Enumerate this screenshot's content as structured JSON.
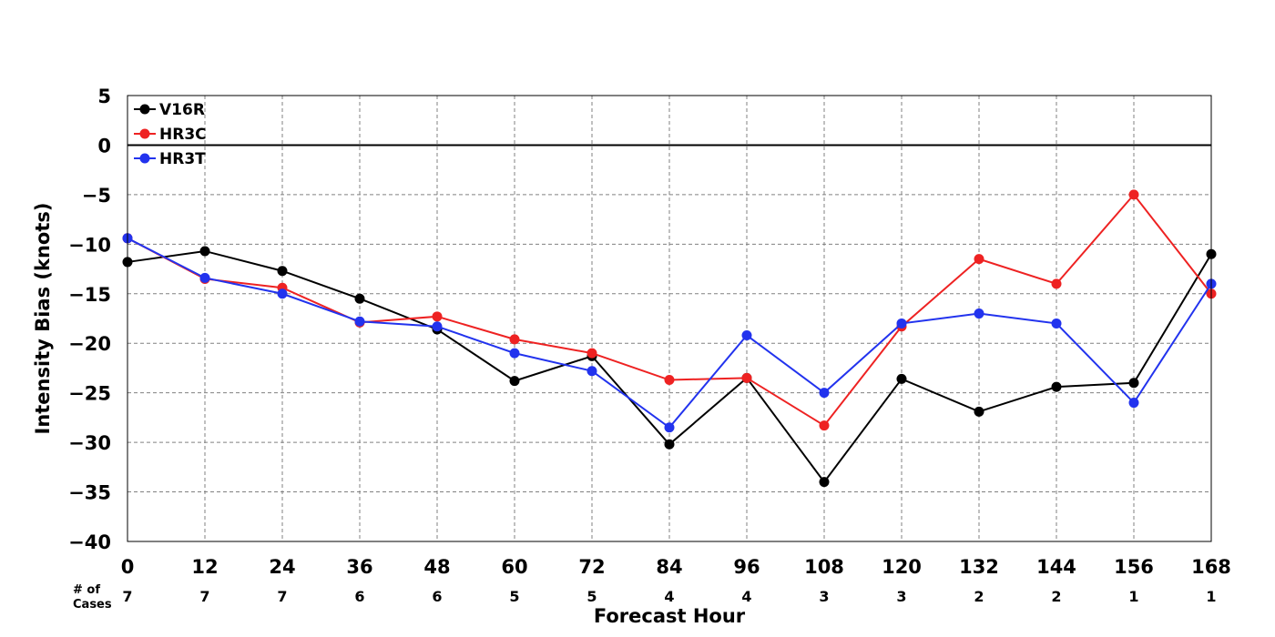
{
  "chart_data": {
    "type": "line",
    "title": "",
    "xlabel": "Forecast Hour",
    "ylabel": "Intensity Bias (knots)",
    "x": [
      0,
      12,
      24,
      36,
      48,
      60,
      72,
      84,
      96,
      108,
      120,
      132,
      144,
      156,
      168
    ],
    "xlim": [
      0,
      168
    ],
    "ylim": [
      -40,
      5
    ],
    "yticks": [
      5,
      0,
      -5,
      -10,
      -15,
      -20,
      -25,
      -30,
      -35,
      -40
    ],
    "ytick_labels": [
      "5",
      "0",
      "−5",
      "−10",
      "−15",
      "−20",
      "−25",
      "−30",
      "−35",
      "−40"
    ],
    "grid": true,
    "legend_position": "top-left",
    "zero_line": true,
    "cases_label_line1": "# of",
    "cases_label_line2": "Cases",
    "cases": [
      7,
      7,
      7,
      6,
      6,
      5,
      5,
      4,
      4,
      3,
      3,
      2,
      2,
      1,
      1
    ],
    "series": [
      {
        "name": "V16R",
        "color": "#000000",
        "values": [
          -11.8,
          -10.7,
          -12.7,
          -15.5,
          -18.6,
          -23.8,
          -21.3,
          -30.2,
          -23.5,
          -34.0,
          -23.6,
          -26.9,
          -24.4,
          -24.0,
          -11.0
        ]
      },
      {
        "name": "HR3C",
        "color": "#ee2222",
        "values": [
          -9.4,
          -13.5,
          -14.4,
          -17.9,
          -17.3,
          -19.6,
          -21.0,
          -23.7,
          -23.5,
          -28.3,
          -18.3,
          -11.5,
          -14.0,
          -5.0,
          -15.0
        ]
      },
      {
        "name": "HR3T",
        "color": "#2233ee",
        "values": [
          -9.4,
          -13.4,
          -15.0,
          -17.8,
          -18.3,
          -21.0,
          -22.8,
          -28.5,
          -19.2,
          -25.0,
          -18.0,
          -17.0,
          -18.0,
          -26.0,
          -14.0
        ]
      }
    ]
  }
}
